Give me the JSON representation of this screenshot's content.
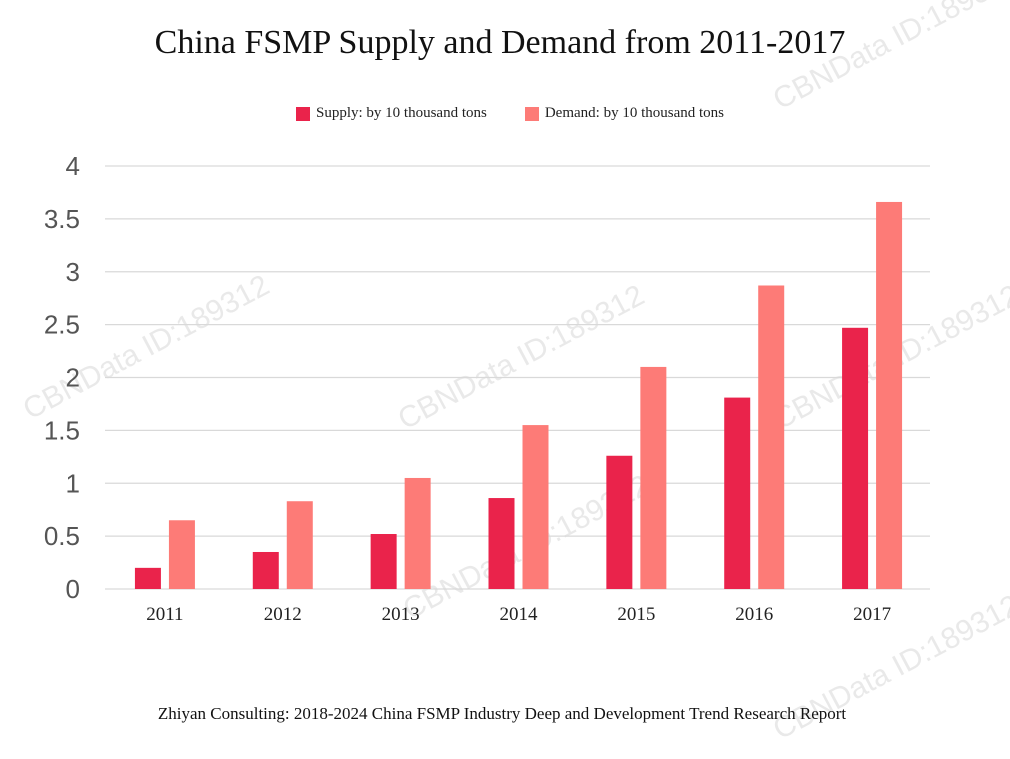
{
  "chart_data": {
    "type": "bar",
    "title": "China FSMP Supply and Demand from 2011-2017",
    "categories": [
      "2011",
      "2012",
      "2013",
      "2014",
      "2015",
      "2016",
      "2017"
    ],
    "series": [
      {
        "name": "Supply: by 10 thousand tons",
        "color": "#ea234b",
        "values": [
          0.2,
          0.35,
          0.52,
          0.86,
          1.26,
          1.81,
          2.47
        ]
      },
      {
        "name": "Demand: by 10 thousand tons",
        "color": "#fd7b77",
        "values": [
          0.65,
          0.83,
          1.05,
          1.55,
          2.1,
          2.87,
          3.66
        ]
      }
    ],
    "ylim": [
      0,
      4
    ],
    "yticks": [
      "0",
      "0.5",
      "1",
      "1.5",
      "2",
      "2.5",
      "3",
      "3.5",
      "4"
    ],
    "grid": true,
    "legend_position": "top-center",
    "source": "Zhiyan Consulting: 2018-2024 China FSMP Industry Deep and Development Trend Research Report",
    "watermark": "CBNData ID:189312"
  }
}
